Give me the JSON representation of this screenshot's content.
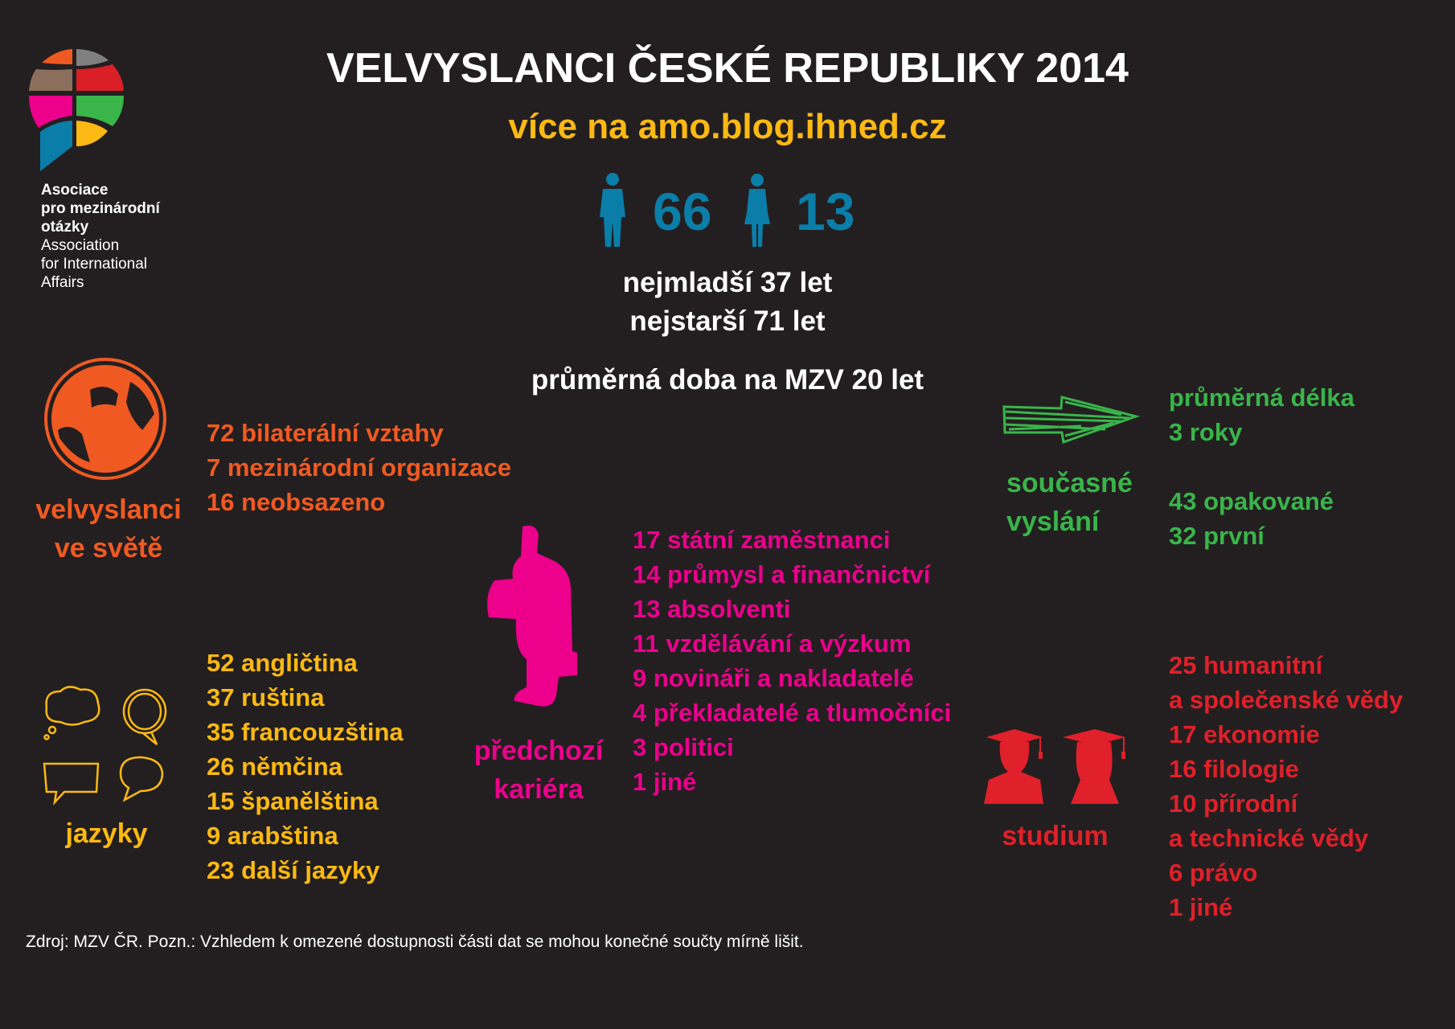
{
  "colors": {
    "background": "#231f20",
    "orange": "#f05a22",
    "pink": "#ec008c",
    "yellow": "#fdb913",
    "green": "#39b54a",
    "red": "#e0202a",
    "blue": "#0a7ea8"
  },
  "logo": {
    "line1": "Asociace",
    "line2": "pro mezinárodní",
    "line3": "otázky",
    "line4": "Association",
    "line5": "for International",
    "line6": "Affairs"
  },
  "header": {
    "title": "VELVYSLANCI ČESKÉ REPUBLIKY 2014",
    "subtitle": "více na amo.blog.ihned.cz"
  },
  "gender": {
    "men": "66",
    "women": "13"
  },
  "ages": {
    "youngest": "nejmladší 37 let",
    "oldest": "nejstarší 71 let",
    "tenure": "průměrná doba na MZV 20 let"
  },
  "world": {
    "label1": "velvyslanci",
    "label2": "ve světě",
    "items": [
      "72 bilaterální vztahy",
      "7 mezinárodní organizace",
      "16 neobsazeno"
    ]
  },
  "career": {
    "label1": "předchozí",
    "label2": "kariéra",
    "items": [
      "17 státní zaměstnanci",
      "14 průmysl a finančnictví",
      "13 absolventi",
      "11 vzdělávání a výzkum",
      "9 novináři a nakladatelé",
      "4 překladatelé a tlumočníci",
      "3 politici",
      "1 jiné"
    ]
  },
  "languages": {
    "label": "jazyky",
    "items": [
      "52 angličtina",
      "37 ruština",
      "35 francouzština",
      "26 němčina",
      "15 španělština",
      "9 arabština",
      "23 další jazyky"
    ]
  },
  "posting": {
    "label1": "současné",
    "label2": "vyslání",
    "avg1": "průměrná délka",
    "avg2": "3 roky",
    "items": [
      "43 opakované",
      "32 první"
    ]
  },
  "study": {
    "label": "studium",
    "items": [
      "25 humanitní",
      "a společenské vědy",
      "17 ekonomie",
      "16 filologie",
      "10 přírodní",
      "a technické vědy",
      "6 právo",
      "1 jiné"
    ]
  },
  "footer": "Zdroj:  MZV ČR. Pozn.: Vzhledem k omezené dostupnosti části dat se mohou konečné součty mírně lišit."
}
